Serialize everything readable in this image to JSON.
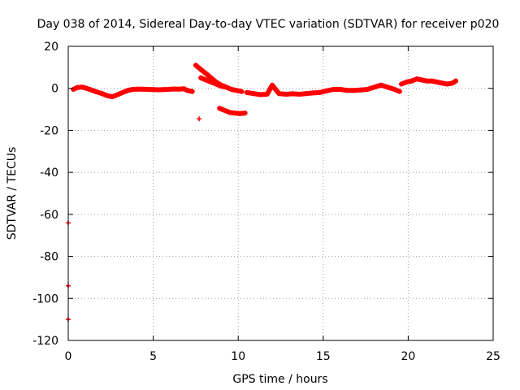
{
  "chart_data": {
    "type": "scatter",
    "title": "Day 038 of 2014, Sidereal Day-to-day VTEC variation (SDTVAR) for receiver p020",
    "xlabel": "GPS time / hours",
    "ylabel": "SDTVAR / TECUs",
    "xlim": [
      0,
      25
    ],
    "ylim": [
      -120,
      20
    ],
    "x_ticks": [
      0,
      5,
      10,
      15,
      20,
      25
    ],
    "y_ticks": [
      -120,
      -100,
      -80,
      -60,
      -40,
      -20,
      0,
      20
    ],
    "grid": true,
    "marker_color": "#ff0000",
    "series": [
      {
        "name": "main-trace",
        "x": [
          0.3,
          0.5,
          0.8,
          1.0,
          1.3,
          1.6,
          2.0,
          2.3,
          2.6,
          2.9,
          3.2,
          3.5,
          3.8,
          4.1,
          4.4,
          4.7,
          5.0,
          5.3,
          5.6,
          5.9,
          6.2,
          6.5,
          6.8,
          7.0,
          7.3
        ],
        "y": [
          -0.5,
          0.3,
          0.6,
          0.2,
          -0.6,
          -1.5,
          -2.5,
          -3.5,
          -4.0,
          -3.0,
          -2.0,
          -1.0,
          -0.5,
          -0.4,
          -0.4,
          -0.5,
          -0.6,
          -0.7,
          -0.6,
          -0.5,
          -0.3,
          -0.4,
          -0.2,
          -1.0,
          -1.5
        ]
      },
      {
        "name": "arc-upper",
        "x": [
          7.5,
          7.8,
          8.1,
          8.4,
          8.7,
          9.0,
          9.3,
          9.6,
          9.9,
          10.2
        ],
        "y": [
          11.0,
          9.0,
          7.0,
          5.0,
          3.0,
          1.5,
          0.5,
          -0.5,
          -1.0,
          -1.5
        ]
      },
      {
        "name": "arc-lower",
        "x": [
          7.8,
          8.1,
          8.4,
          8.7,
          9.0,
          9.3
        ],
        "y": [
          5.0,
          4.0,
          3.0,
          2.0,
          1.0,
          0.5
        ]
      },
      {
        "name": "dip-segment",
        "x": [
          8.9,
          9.2,
          9.5,
          9.8,
          10.1,
          10.4
        ],
        "y": [
          -9.5,
          -10.5,
          -11.5,
          -11.8,
          -12.0,
          -11.8
        ]
      },
      {
        "name": "isolated-point",
        "x": [
          7.7
        ],
        "y": [
          -14.5
        ]
      },
      {
        "name": "right-trace",
        "x": [
          10.5,
          10.9,
          11.3,
          11.7,
          12.0,
          12.4,
          12.8,
          13.2,
          13.6,
          14.0,
          14.4,
          14.8,
          15.2,
          15.6,
          16.0,
          16.4,
          16.8,
          17.2,
          17.6,
          18.0,
          18.4,
          18.8,
          19.2,
          19.5
        ],
        "y": [
          -2.0,
          -2.5,
          -3.0,
          -2.8,
          1.5,
          -2.5,
          -2.8,
          -2.6,
          -2.8,
          -2.5,
          -2.2,
          -2.0,
          -1.2,
          -0.5,
          -0.5,
          -1.0,
          -1.0,
          -0.8,
          -0.5,
          0.5,
          1.5,
          0.5,
          -0.5,
          -1.5
        ]
      },
      {
        "name": "end-trace",
        "x": [
          19.6,
          19.9,
          20.2,
          20.5,
          20.8,
          21.1,
          21.4,
          21.7,
          22.0,
          22.3,
          22.6,
          22.8
        ],
        "y": [
          2.0,
          3.0,
          3.5,
          4.5,
          4.0,
          3.5,
          3.5,
          3.0,
          2.5,
          2.0,
          2.5,
          3.5
        ]
      },
      {
        "name": "outliers",
        "x": [
          0.0,
          0.0,
          0.0
        ],
        "y": [
          -64,
          -94,
          -110
        ]
      }
    ]
  }
}
